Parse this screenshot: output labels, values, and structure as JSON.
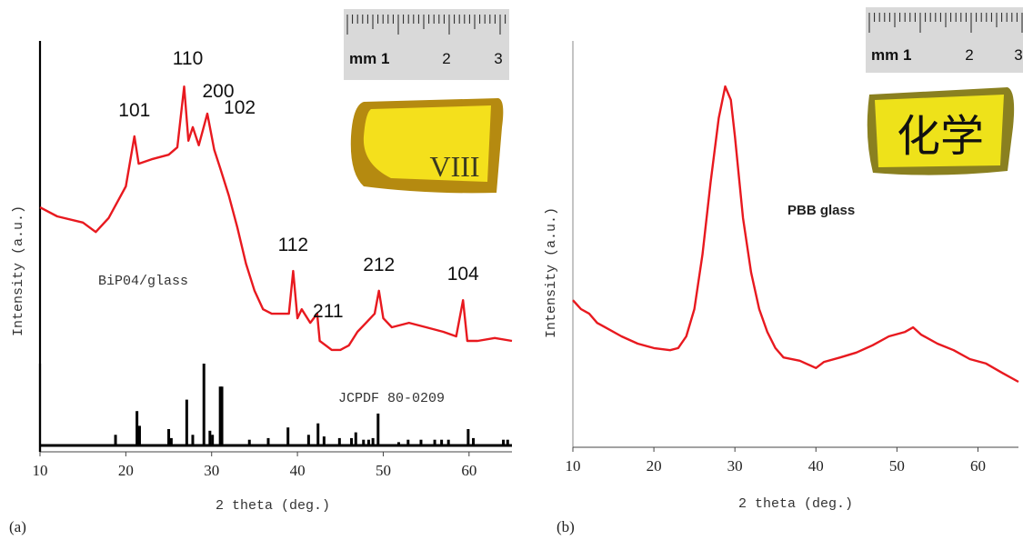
{
  "chart_data": [
    {
      "type": "line",
      "panel_label": "(a)",
      "xlabel": "2 theta (deg.)",
      "ylabel": "Intensity (a.u.)",
      "xlim": [
        10,
        65
      ],
      "xticks": [
        10,
        20,
        30,
        40,
        50,
        60
      ],
      "ylim": [
        0,
        100
      ],
      "series": [
        {
          "name": "BiP04/glass",
          "color": "#e8191f",
          "x": [
            10,
            12,
            15,
            16.5,
            18,
            20,
            21,
            21.5,
            23,
            25,
            26,
            26.8,
            27.3,
            27.8,
            28.5,
            29.5,
            30.3,
            31,
            32,
            33,
            34,
            35,
            36,
            37,
            38,
            39,
            39.5,
            40,
            40.5,
            41.5,
            42.3,
            42.6,
            44,
            45,
            46,
            47,
            48,
            49,
            49.5,
            50,
            51,
            53,
            55,
            57,
            58.5,
            59.3,
            59.8,
            61,
            63,
            65
          ],
          "values": [
            59.5,
            57.3,
            55.8,
            53.5,
            56.9,
            64.6,
            76.8,
            70.1,
            71.2,
            72.3,
            74.1,
            88.9,
            75.7,
            79.0,
            74.6,
            82.3,
            73.5,
            69.0,
            62.4,
            54.6,
            45.8,
            39.2,
            34.7,
            33.6,
            33.6,
            33.6,
            44.0,
            32.5,
            34.7,
            31.4,
            33.6,
            27.0,
            24.8,
            24.8,
            25.9,
            29.2,
            31.4,
            33.6,
            39.2,
            32.5,
            30.3,
            31.4,
            30.3,
            29.2,
            28.1,
            36.9,
            27.0,
            27.0,
            27.7,
            27.0
          ]
        }
      ],
      "annotations": [
        {
          "text": "101",
          "x": 21
        },
        {
          "text": "110",
          "x": 26.8
        },
        {
          "text": "200",
          "x": 29.5
        },
        {
          "text": "102",
          "x": 30.3
        },
        {
          "text": "112",
          "x": 39.5
        },
        {
          "text": "211",
          "x": 42.3
        },
        {
          "text": "212",
          "x": 49.5
        },
        {
          "text": "104",
          "x": 59.3
        }
      ],
      "sticks": {
        "name": "JCPDF 80-0209",
        "color": "#000000",
        "ylim": [
          0,
          100
        ],
        "x": [
          18.8,
          21.3,
          21.6,
          25,
          25.3,
          27.1,
          27.8,
          29.1,
          29.8,
          30.1,
          31,
          31.2,
          34.4,
          36.6,
          38.9,
          41.3,
          42.4,
          43.1,
          44.9,
          46.3,
          46.8,
          47.7,
          48.3,
          48.8,
          49.4,
          51.8,
          52.9,
          54.4,
          56,
          56.8,
          57.6,
          59.9,
          60.5,
          64,
          64.5
        ],
        "values": [
          13,
          42,
          24,
          20,
          9,
          56,
          13,
          100,
          18,
          13,
          72,
          72,
          7,
          9,
          22,
          13,
          27,
          11,
          9,
          9,
          16,
          7,
          7,
          9,
          39,
          4,
          7,
          7,
          7,
          7,
          7,
          20,
          9,
          7,
          7
        ]
      },
      "inset": {
        "ruler_labels": [
          "mm 1",
          "2",
          "3"
        ],
        "sample_text": "VIII"
      }
    },
    {
      "type": "line",
      "panel_label": "(b)",
      "xlabel": "2 theta (deg.)",
      "ylabel": "Intensity (a.u.)",
      "xlim": [
        10,
        65
      ],
      "xticks": [
        10,
        20,
        30,
        40,
        50,
        60
      ],
      "ylim": [
        0,
        100
      ],
      "series": [
        {
          "name": "PBB glass",
          "color": "#e8191f",
          "x": [
            10,
            11,
            12,
            13,
            14,
            16,
            18,
            20,
            22,
            23,
            24,
            25,
            26,
            27,
            28,
            28.8,
            29.5,
            30,
            31,
            32,
            33,
            34,
            35,
            36,
            38,
            40,
            41,
            43,
            45,
            47,
            49,
            51,
            52,
            53,
            55,
            57,
            59,
            61,
            63,
            65
          ],
          "values": [
            36.2,
            34.0,
            32.9,
            30.6,
            29.5,
            27.3,
            25.5,
            24.4,
            23.9,
            24.4,
            27.3,
            34.0,
            47.4,
            65.3,
            81.0,
            88.8,
            85.5,
            76.5,
            56.4,
            43.0,
            34.0,
            28.4,
            24.4,
            22.1,
            21.3,
            19.5,
            21.0,
            22.1,
            23.3,
            25.1,
            27.3,
            28.4,
            29.5,
            27.7,
            25.5,
            23.9,
            21.7,
            20.6,
            18.3,
            16.1
          ]
        }
      ],
      "inset": {
        "ruler_labels": [
          "mm 1",
          "2",
          "3"
        ],
        "sample_text": "化学"
      }
    }
  ]
}
